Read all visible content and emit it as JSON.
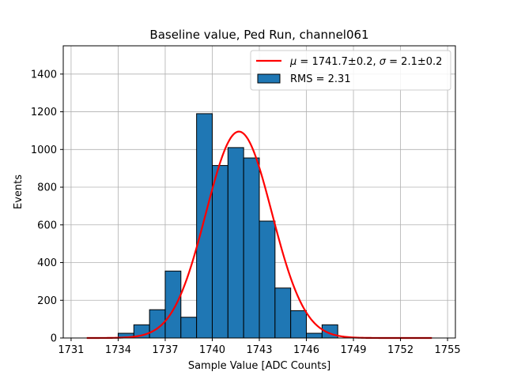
{
  "chart_data": {
    "type": "bar",
    "title": "Baseline value, Ped Run, channel061",
    "xlabel": "Sample Value [ADC Counts]",
    "ylabel": "Events",
    "xlim": [
      1730.5,
      1755.5
    ],
    "ylim": [
      0,
      1550
    ],
    "xticks": [
      1731,
      1734,
      1737,
      1740,
      1743,
      1746,
      1749,
      1752,
      1755
    ],
    "xtick_labels": [
      "1731",
      "1734",
      "1737",
      "1740",
      "1743",
      "1746",
      "1749",
      "1752",
      "1755"
    ],
    "yticks": [
      0,
      200,
      400,
      600,
      800,
      1000,
      1200,
      1400
    ],
    "ytick_labels": [
      "0",
      "200",
      "400",
      "600",
      "800",
      "1000",
      "1200",
      "1400"
    ],
    "grid": true,
    "legend_position": "top-right",
    "histogram": {
      "bin_width": 1,
      "bin_starts": [
        1734,
        1735,
        1736,
        1737,
        1738,
        1739,
        1740,
        1741,
        1742,
        1743,
        1744,
        1745,
        1746,
        1747,
        1748
      ],
      "counts": [
        25,
        70,
        150,
        355,
        110,
        1190,
        915,
        1010,
        955,
        620,
        265,
        145,
        25,
        70,
        0
      ],
      "color": "#1f77b4",
      "edge_color": "#000000",
      "label": "RMS = 2.31"
    },
    "fit": {
      "label_parts": [
        "μ",
        " = 1741.7±0.2, ",
        "σ",
        " = 2.1±0.2"
      ],
      "mu": 1741.7,
      "sigma": 2.1,
      "amplitude": 1095,
      "x_range": [
        1732,
        1754
      ],
      "color": "#ff0000"
    }
  }
}
